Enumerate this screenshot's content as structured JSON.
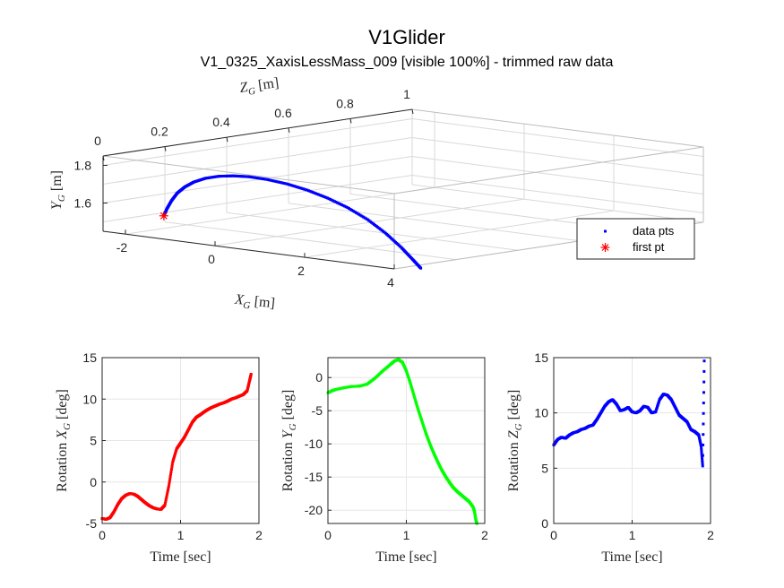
{
  "figure": {
    "title": "V1Glider",
    "subtitle": "V1_0325_XaxisLessMass_009 [visible 100%] - trimmed raw data"
  },
  "chart_data": [
    {
      "type": "scatter",
      "name": "3d-trajectory",
      "axes": {
        "x": {
          "label": "X_G [m]",
          "ticks": [
            "-2",
            "0",
            "2",
            "4"
          ],
          "range": [
            -2.5,
            4
          ]
        },
        "y": {
          "label": "Y_G [m]",
          "ticks": [
            "1.6",
            "1.8"
          ],
          "range": [
            1.45,
            1.85
          ]
        },
        "z": {
          "label": "Z_G [m]",
          "ticks": [
            "0",
            "0.2",
            "0.4",
            "0.6",
            "0.8",
            "1"
          ],
          "range": [
            0,
            1
          ]
        }
      },
      "grid": true,
      "legend": {
        "placement": "right",
        "entries": [
          {
            "label": "data pts",
            "marker": "square",
            "color": "#0000ff"
          },
          {
            "label": "first pt",
            "marker": "asterisk",
            "color": "#ff0000"
          }
        ]
      },
      "series": [
        {
          "marker": "square",
          "color": "#0000ff",
          "points_xy": [
            [
              -1.35,
              1.56
            ],
            [
              -1.28,
              1.6
            ],
            [
              -1.18,
              1.645
            ],
            [
              -1.05,
              1.69
            ],
            [
              -0.88,
              1.728
            ],
            [
              -0.68,
              1.76
            ],
            [
              -0.42,
              1.788
            ],
            [
              -0.12,
              1.808
            ],
            [
              0.2,
              1.82
            ],
            [
              0.55,
              1.826
            ],
            [
              0.95,
              1.824
            ],
            [
              1.4,
              1.814
            ],
            [
              1.85,
              1.795
            ],
            [
              2.3,
              1.767
            ],
            [
              2.75,
              1.73
            ],
            [
              3.2,
              1.68
            ],
            [
              3.6,
              1.62
            ],
            [
              3.95,
              1.555
            ],
            [
              4.2,
              1.5
            ],
            [
              4.4,
              1.455
            ]
          ]
        },
        {
          "marker": "asterisk",
          "color": "#ff0000",
          "points_xy": [
            [
              -1.35,
              1.56
            ]
          ]
        }
      ]
    },
    {
      "type": "scatter",
      "name": "rotation-x",
      "xlabel": "Time [sec]",
      "ylabel": "Rotation X_G [deg]",
      "xlim": [
        0,
        2
      ],
      "ylim": [
        -5,
        15
      ],
      "xticks": [
        "0",
        "1",
        "2"
      ],
      "yticks": [
        "-5",
        "0",
        "5",
        "10",
        "15"
      ],
      "grid": true,
      "color": "#ff0000",
      "x": [
        0,
        0.05,
        0.1,
        0.15,
        0.2,
        0.25,
        0.3,
        0.35,
        0.4,
        0.45,
        0.5,
        0.55,
        0.6,
        0.65,
        0.7,
        0.75,
        0.8,
        0.85,
        0.9,
        0.95,
        1.0,
        1.05,
        1.1,
        1.15,
        1.2,
        1.25,
        1.3,
        1.35,
        1.4,
        1.45,
        1.5,
        1.55,
        1.6,
        1.65,
        1.7,
        1.75,
        1.8,
        1.85,
        1.88,
        1.9
      ],
      "y": [
        -4.4,
        -4.5,
        -4.3,
        -3.6,
        -2.7,
        -2.0,
        -1.6,
        -1.4,
        -1.45,
        -1.7,
        -2.1,
        -2.5,
        -2.85,
        -3.1,
        -3.25,
        -3.3,
        -2.8,
        -0.5,
        2.4,
        4.0,
        4.7,
        5.4,
        6.3,
        7.2,
        7.8,
        8.1,
        8.45,
        8.75,
        9.0,
        9.2,
        9.4,
        9.55,
        9.75,
        10.0,
        10.15,
        10.35,
        10.55,
        11.0,
        12.2,
        13.0
      ]
    },
    {
      "type": "scatter",
      "name": "rotation-y",
      "xlabel": "Time [sec]",
      "ylabel": "Rotation Y_G [deg]",
      "xlim": [
        0,
        2
      ],
      "ylim": [
        -22,
        3
      ],
      "xticks": [
        "0",
        "1",
        "2"
      ],
      "yticks": [
        "-20",
        "-15",
        "-10",
        "-5",
        "0"
      ],
      "grid": true,
      "color": "#00ff00",
      "x": [
        0,
        0.05,
        0.1,
        0.2,
        0.3,
        0.4,
        0.5,
        0.6,
        0.7,
        0.8,
        0.85,
        0.9,
        0.95,
        1.0,
        1.05,
        1.1,
        1.15,
        1.2,
        1.25,
        1.3,
        1.35,
        1.4,
        1.45,
        1.5,
        1.55,
        1.6,
        1.65,
        1.7,
        1.75,
        1.8,
        1.85,
        1.87,
        1.88,
        1.89,
        1.9
      ],
      "y": [
        -2.3,
        -2.0,
        -1.8,
        -1.55,
        -1.35,
        -1.3,
        -1.0,
        -0.1,
        1.0,
        2.0,
        2.5,
        2.7,
        2.3,
        1.0,
        -0.8,
        -2.8,
        -4.8,
        -6.6,
        -8.4,
        -10.0,
        -11.4,
        -12.7,
        -13.9,
        -14.9,
        -15.8,
        -16.6,
        -17.2,
        -17.7,
        -18.2,
        -18.7,
        -19.5,
        -20.2,
        -21.0,
        -21.6,
        -22.0
      ]
    },
    {
      "type": "scatter",
      "name": "rotation-z",
      "xlabel": "Time [sec]",
      "ylabel": "Rotation Z_G [deg]",
      "xlim": [
        0,
        2
      ],
      "ylim": [
        0,
        15
      ],
      "xticks": [
        "0",
        "1",
        "2"
      ],
      "yticks": [
        "0",
        "5",
        "10",
        "15"
      ],
      "grid": true,
      "color": "#0000ff",
      "x": [
        0,
        0.05,
        0.1,
        0.15,
        0.2,
        0.25,
        0.3,
        0.35,
        0.4,
        0.45,
        0.5,
        0.55,
        0.6,
        0.65,
        0.7,
        0.75,
        0.8,
        0.85,
        0.9,
        0.95,
        1.0,
        1.05,
        1.1,
        1.15,
        1.2,
        1.25,
        1.3,
        1.35,
        1.4,
        1.45,
        1.5,
        1.55,
        1.6,
        1.65,
        1.7,
        1.75,
        1.8,
        1.85,
        1.88,
        1.9,
        1.92
      ],
      "y": [
        7.1,
        7.6,
        7.8,
        7.7,
        8.0,
        8.2,
        8.3,
        8.5,
        8.6,
        8.8,
        8.9,
        9.4,
        10.0,
        10.6,
        11.0,
        11.2,
        10.8,
        10.2,
        10.3,
        10.5,
        10.1,
        10.0,
        10.2,
        10.6,
        10.5,
        10.0,
        10.1,
        11.2,
        11.7,
        11.6,
        11.2,
        10.5,
        9.8,
        9.5,
        9.2,
        8.5,
        8.3,
        8.0,
        7.0,
        5.2,
        14.7
      ]
    }
  ]
}
